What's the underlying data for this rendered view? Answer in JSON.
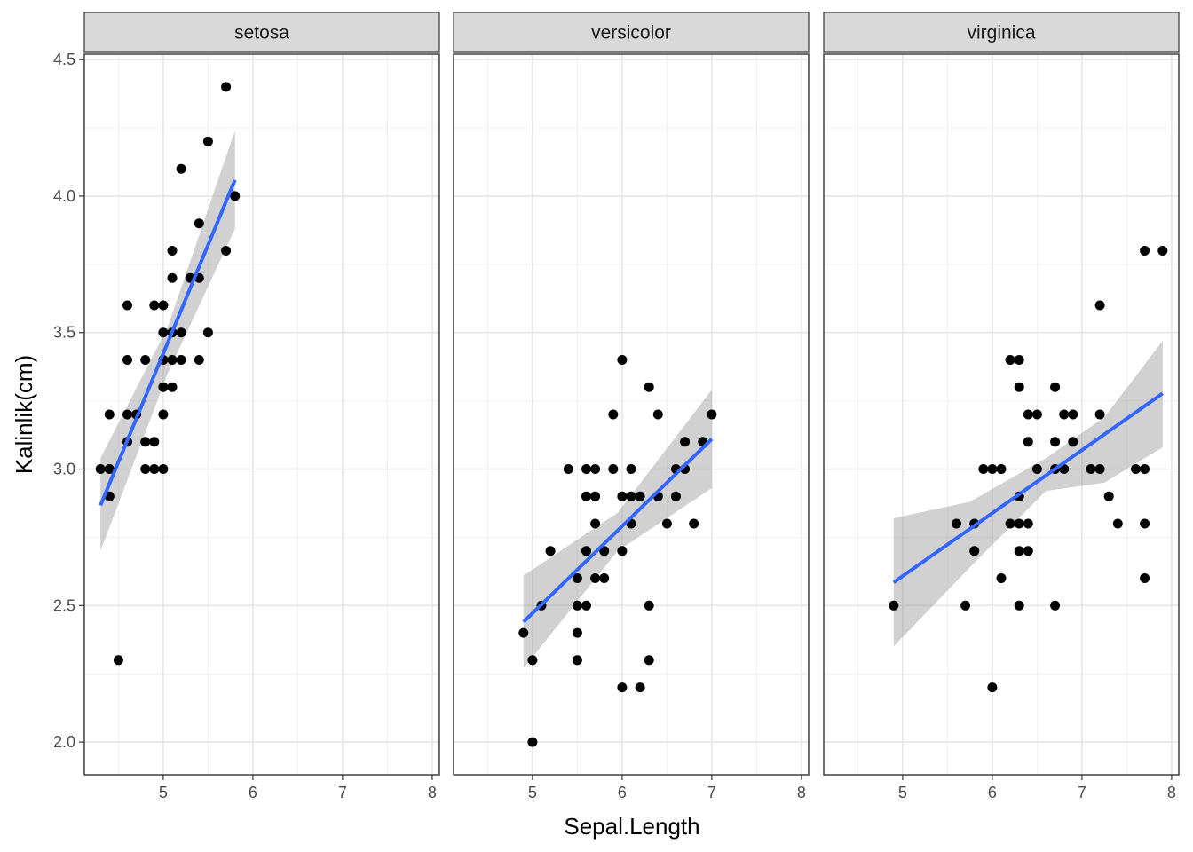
{
  "chart_data": {
    "type": "scatter",
    "xlabel": "Sepal.Length",
    "ylabel": "Kalinlik(cm)",
    "xlim": [
      4.12,
      8.08
    ],
    "ylim": [
      1.88,
      4.52
    ],
    "x_ticks": [
      5,
      6,
      7,
      8
    ],
    "y_ticks": [
      "2.0",
      "2.5",
      "3.0",
      "3.5",
      "4.0",
      "4.5"
    ],
    "grid": true,
    "point_color": "#000000",
    "fit_color": "#3366FF",
    "band_color": "#999999",
    "panels": [
      {
        "name": "setosa",
        "points": [
          [
            4.3,
            3.0
          ],
          [
            4.4,
            3.0
          ],
          [
            4.4,
            2.9
          ],
          [
            4.4,
            3.2
          ],
          [
            4.5,
            2.3
          ],
          [
            4.6,
            3.1
          ],
          [
            4.6,
            3.2
          ],
          [
            4.6,
            3.4
          ],
          [
            4.6,
            3.6
          ],
          [
            4.7,
            3.2
          ],
          [
            4.8,
            3.0
          ],
          [
            4.8,
            3.1
          ],
          [
            4.8,
            3.4
          ],
          [
            4.9,
            3.0
          ],
          [
            4.9,
            3.1
          ],
          [
            4.9,
            3.6
          ],
          [
            5.0,
            3.0
          ],
          [
            5.0,
            3.2
          ],
          [
            5.0,
            3.3
          ],
          [
            5.0,
            3.4
          ],
          [
            5.0,
            3.5
          ],
          [
            5.0,
            3.6
          ],
          [
            5.1,
            3.3
          ],
          [
            5.1,
            3.4
          ],
          [
            5.1,
            3.5
          ],
          [
            5.1,
            3.7
          ],
          [
            5.1,
            3.8
          ],
          [
            5.2,
            3.4
          ],
          [
            5.2,
            3.5
          ],
          [
            5.2,
            4.1
          ],
          [
            5.3,
            3.7
          ],
          [
            5.4,
            3.4
          ],
          [
            5.4,
            3.7
          ],
          [
            5.4,
            3.9
          ],
          [
            5.5,
            3.5
          ],
          [
            5.5,
            4.2
          ],
          [
            5.7,
            3.8
          ],
          [
            5.7,
            4.4
          ],
          [
            5.8,
            4.0
          ]
        ],
        "fit": {
          "x": [
            4.3,
            5.8
          ],
          "y": [
            2.867,
            4.059
          ]
        },
        "band": {
          "x": [
            4.3,
            5.05,
            5.8
          ],
          "upper": [
            3.04,
            3.52,
            4.24
          ],
          "lower": [
            2.7,
            3.35,
            3.88
          ]
        }
      },
      {
        "name": "versicolor",
        "points": [
          [
            4.9,
            2.4
          ],
          [
            5.0,
            2.0
          ],
          [
            5.0,
            2.3
          ],
          [
            5.1,
            2.5
          ],
          [
            5.2,
            2.7
          ],
          [
            5.4,
            3.0
          ],
          [
            5.5,
            2.3
          ],
          [
            5.5,
            2.4
          ],
          [
            5.5,
            2.5
          ],
          [
            5.5,
            2.6
          ],
          [
            5.6,
            2.5
          ],
          [
            5.6,
            2.7
          ],
          [
            5.6,
            2.9
          ],
          [
            5.6,
            3.0
          ],
          [
            5.7,
            2.6
          ],
          [
            5.7,
            2.8
          ],
          [
            5.7,
            2.9
          ],
          [
            5.7,
            3.0
          ],
          [
            5.8,
            2.6
          ],
          [
            5.8,
            2.7
          ],
          [
            5.9,
            3.0
          ],
          [
            5.9,
            3.2
          ],
          [
            6.0,
            2.2
          ],
          [
            6.0,
            2.7
          ],
          [
            6.0,
            2.9
          ],
          [
            6.0,
            3.4
          ],
          [
            6.1,
            2.8
          ],
          [
            6.1,
            2.9
          ],
          [
            6.1,
            3.0
          ],
          [
            6.2,
            2.2
          ],
          [
            6.2,
            2.9
          ],
          [
            6.3,
            2.3
          ],
          [
            6.3,
            2.5
          ],
          [
            6.3,
            3.3
          ],
          [
            6.4,
            2.9
          ],
          [
            6.4,
            3.2
          ],
          [
            6.5,
            2.8
          ],
          [
            6.6,
            2.9
          ],
          [
            6.6,
            3.0
          ],
          [
            6.7,
            3.0
          ],
          [
            6.7,
            3.1
          ],
          [
            6.8,
            2.8
          ],
          [
            6.9,
            3.1
          ],
          [
            7.0,
            3.2
          ]
        ],
        "fit": {
          "x": [
            4.9,
            7.0
          ],
          "y": [
            2.44,
            3.11
          ]
        },
        "band": {
          "x": [
            4.9,
            5.95,
            7.0
          ],
          "upper": [
            2.61,
            2.84,
            3.29
          ],
          "lower": [
            2.27,
            2.7,
            2.93
          ]
        }
      },
      {
        "name": "virginica",
        "points": [
          [
            4.9,
            2.5
          ],
          [
            5.6,
            2.8
          ],
          [
            5.7,
            2.5
          ],
          [
            5.8,
            2.7
          ],
          [
            5.8,
            2.8
          ],
          [
            5.9,
            3.0
          ],
          [
            6.0,
            2.2
          ],
          [
            6.0,
            3.0
          ],
          [
            6.1,
            2.6
          ],
          [
            6.1,
            3.0
          ],
          [
            6.2,
            2.8
          ],
          [
            6.2,
            3.4
          ],
          [
            6.3,
            2.5
          ],
          [
            6.3,
            2.7
          ],
          [
            6.3,
            2.8
          ],
          [
            6.3,
            2.9
          ],
          [
            6.3,
            3.3
          ],
          [
            6.3,
            3.4
          ],
          [
            6.4,
            2.7
          ],
          [
            6.4,
            2.8
          ],
          [
            6.4,
            3.1
          ],
          [
            6.4,
            3.2
          ],
          [
            6.5,
            3.0
          ],
          [
            6.5,
            3.2
          ],
          [
            6.7,
            2.5
          ],
          [
            6.7,
            3.0
          ],
          [
            6.7,
            3.1
          ],
          [
            6.7,
            3.3
          ],
          [
            6.8,
            3.0
          ],
          [
            6.8,
            3.2
          ],
          [
            6.9,
            3.1
          ],
          [
            6.9,
            3.2
          ],
          [
            7.1,
            3.0
          ],
          [
            7.2,
            3.0
          ],
          [
            7.2,
            3.2
          ],
          [
            7.2,
            3.6
          ],
          [
            7.3,
            2.9
          ],
          [
            7.4,
            2.8
          ],
          [
            7.6,
            3.0
          ],
          [
            7.7,
            2.6
          ],
          [
            7.7,
            2.8
          ],
          [
            7.7,
            3.0
          ],
          [
            7.7,
            3.8
          ],
          [
            7.9,
            3.8
          ]
        ],
        "fit": {
          "x": [
            4.9,
            7.9
          ],
          "y": [
            2.585,
            3.277
          ]
        },
        "band": {
          "x": [
            4.9,
            5.75,
            6.6,
            7.25,
            7.9
          ],
          "upper": [
            2.82,
            2.88,
            3.04,
            3.19,
            3.47
          ],
          "lower": [
            2.35,
            2.64,
            2.92,
            2.95,
            3.08
          ]
        }
      }
    ]
  }
}
